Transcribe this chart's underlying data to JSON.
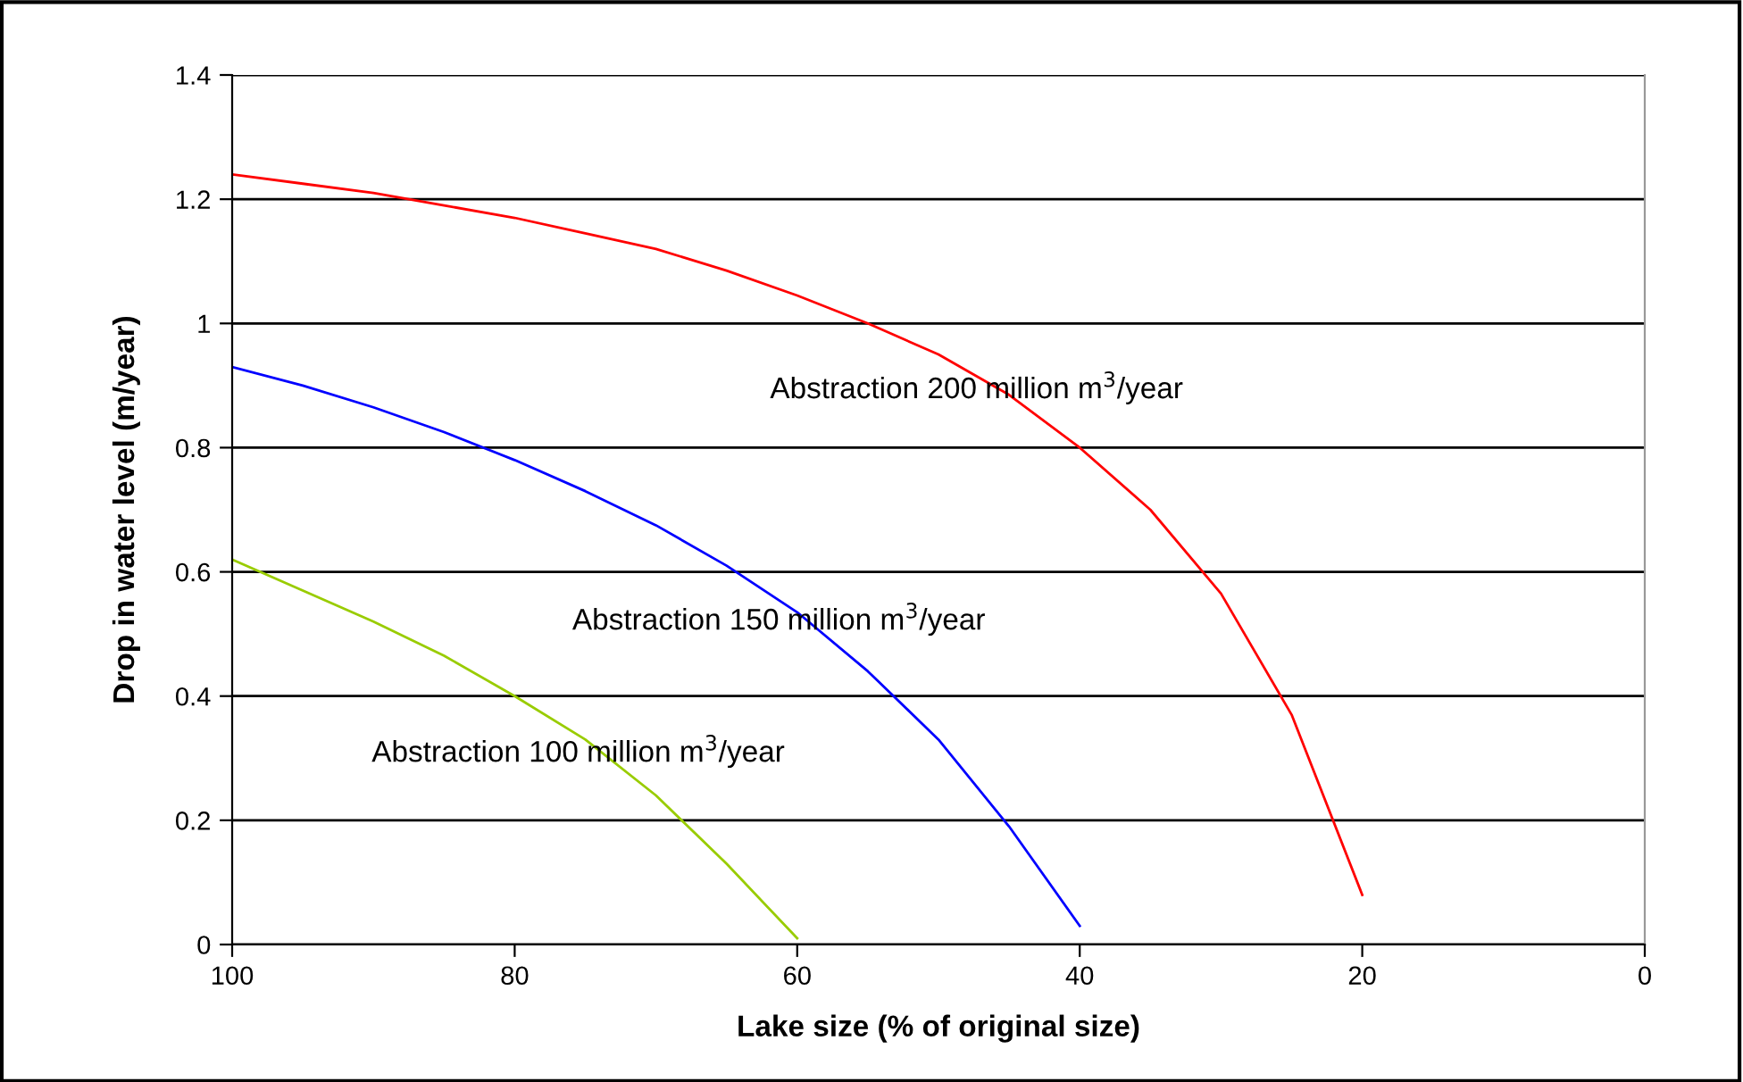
{
  "chart_data": {
    "type": "line",
    "xlabel": "Lake size (% of original size)",
    "ylabel": "Drop in water level (m/year)",
    "xlim": [
      100,
      0
    ],
    "xticks": [
      100,
      80,
      60,
      40,
      20,
      0
    ],
    "ylim": [
      0,
      1.4
    ],
    "yticks": [
      0,
      0.2,
      0.4,
      0.6,
      0.8,
      1,
      1.2,
      1.4
    ],
    "grid": "y",
    "legend": false,
    "marker": "none",
    "line_style": "solid",
    "series": [
      {
        "name": "Abstraction 200 million m$^{3}$/year",
        "color": "#ff0000",
        "x": [
          100,
          95,
          90,
          85,
          80,
          75,
          70,
          65,
          60,
          55,
          50,
          45,
          40,
          35,
          30,
          25,
          20
        ],
        "values": [
          1.24,
          1.225,
          1.21,
          1.19,
          1.17,
          1.145,
          1.12,
          1.085,
          1.045,
          1.0,
          0.95,
          0.885,
          0.8,
          0.7,
          0.565,
          0.37,
          0.08
        ]
      },
      {
        "name": "Abstraction 150 million m$^{3}$/year",
        "color": "#0000ff",
        "x": [
          100,
          95,
          90,
          85,
          80,
          75,
          70,
          65,
          60,
          55,
          50,
          45,
          40
        ],
        "values": [
          0.93,
          0.9,
          0.865,
          0.825,
          0.78,
          0.73,
          0.675,
          0.61,
          0.535,
          0.44,
          0.33,
          0.19,
          0.03
        ]
      },
      {
        "name": "Abstraction 100 million m$^{3}$/year",
        "color": "#99cc00",
        "x": [
          100,
          95,
          90,
          85,
          80,
          75,
          70,
          65,
          60
        ],
        "values": [
          0.62,
          0.57,
          0.52,
          0.465,
          0.4,
          0.33,
          0.24,
          0.13,
          0.01
        ]
      }
    ]
  }
}
